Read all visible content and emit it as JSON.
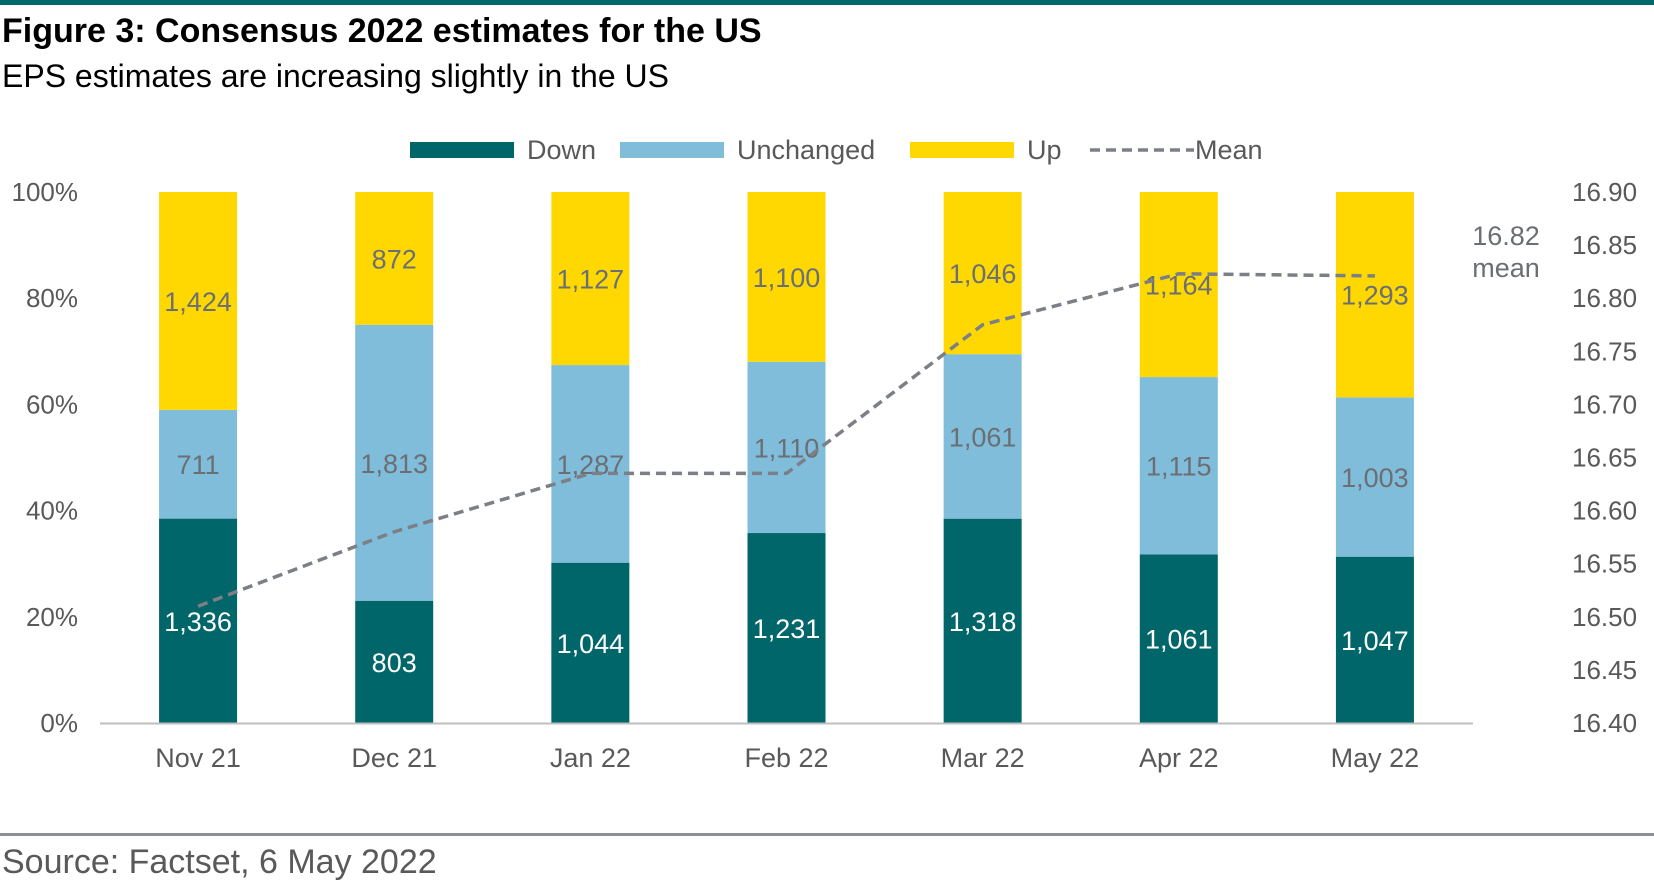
{
  "header": {
    "title": "Figure 3: Consensus 2022 estimates for the US",
    "subtitle": "EPS estimates are increasing slightly in the US"
  },
  "footer": {
    "source": "Source: Factset, 6 May 2022"
  },
  "colors": {
    "down": "#006669",
    "unchanged": "#80bdda",
    "up": "#fed800",
    "mean": "#7c7f85",
    "rule": "#00696b"
  },
  "chart_data": {
    "type": "bar",
    "stacked": "percent",
    "categories": [
      "Nov 21",
      "Dec 21",
      "Jan 22",
      "Feb 22",
      "Mar 22",
      "Apr 22",
      "May 22"
    ],
    "series": [
      {
        "name": "Down",
        "values": [
          1336,
          803,
          1044,
          1231,
          1318,
          1061,
          1047
        ],
        "labels": [
          "1,336",
          "803",
          "1,044",
          "1,231",
          "1,318",
          "1,061",
          "1,047"
        ]
      },
      {
        "name": "Unchanged",
        "values": [
          711,
          1813,
          1287,
          1110,
          1061,
          1115,
          1003
        ],
        "labels": [
          "711",
          "1,813",
          "1,287",
          "1,110",
          "1,061",
          "1,115",
          "1,003"
        ]
      },
      {
        "name": "Up",
        "values": [
          1424,
          872,
          1127,
          1100,
          1046,
          1164,
          1293
        ],
        "labels": [
          "1,424",
          "872",
          "1,127",
          "1,100",
          "1,046",
          "1,164",
          "1,293"
        ]
      }
    ],
    "line": {
      "name": "Mean",
      "values": [
        16.51,
        16.58,
        16.635,
        16.635,
        16.775,
        16.823,
        16.821
      ],
      "style": "dashed",
      "axis": "right"
    },
    "annotation": {
      "value": "16.82",
      "text": "mean"
    },
    "y_left": {
      "ylim": [
        0,
        100
      ],
      "ticks": [
        "0%",
        "20%",
        "40%",
        "60%",
        "80%",
        "100%"
      ]
    },
    "y_right": {
      "ylim": [
        16.4,
        16.9
      ],
      "ticks": [
        "16.40",
        "16.45",
        "16.50",
        "16.55",
        "16.60",
        "16.65",
        "16.70",
        "16.75",
        "16.80",
        "16.85",
        "16.90"
      ]
    },
    "legend_position": "top-center",
    "grid": false
  }
}
